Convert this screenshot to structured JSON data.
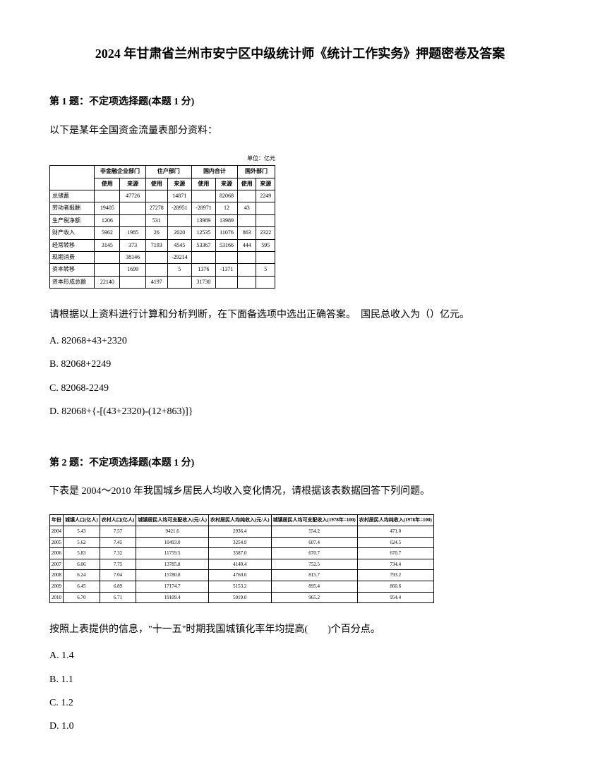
{
  "title": "2024 年甘肃省兰州市安宁区中级统计师《统计工作实务》押题密卷及答案",
  "q1": {
    "header": "第 1 题：不定项选择题(本题 1 分)",
    "text": "以下是某年全国资金流量表部分资料：",
    "unit": "单位：亿元",
    "table": {
      "header_groups": [
        "",
        "非金融企业部门",
        "住户部门",
        "国内合计",
        "国外部门"
      ],
      "sub_headers": [
        "",
        "使用",
        "来源",
        "使用",
        "来源",
        "使用",
        "来源",
        "使用",
        "来源"
      ],
      "rows": [
        [
          "总储蓄",
          "",
          "47726",
          "",
          "14871",
          "",
          "82068",
          "",
          "2249"
        ],
        [
          "劳动者报酬",
          "19405",
          "",
          "27278",
          "-28951",
          "-28971",
          "12",
          "43",
          ""
        ],
        [
          "生产税净额",
          "1206",
          "",
          "531",
          "",
          "13989",
          "13989",
          "",
          ""
        ],
        [
          "财产收入",
          "5962",
          "1985",
          "26",
          "2020",
          "12535",
          "11076",
          "863",
          "2322"
        ],
        [
          "经常转移",
          "3145",
          "373",
          "7193",
          "4545",
          "53367",
          "53166",
          "444",
          "595"
        ],
        [
          "现期消费",
          "",
          "38146",
          "",
          "-29214",
          "",
          "",
          "",
          ""
        ],
        [
          "资本转移",
          "",
          "1699",
          "",
          "5",
          "1376",
          "-1371",
          "",
          "5"
        ],
        [
          "资本形成总额",
          "22140",
          "",
          "4197",
          "",
          "31730",
          "",
          "",
          ""
        ]
      ]
    },
    "answer_prompt": "请根据以上资料进行计算和分析判断，在下面备选项中选出正确答案。　国民总收入为（）亿元。",
    "options": {
      "a": "A. 82068+43+2320",
      "b": "B. 82068+2249",
      "c": "C. 82068-2249",
      "d": "D. 82068+{-[(43+2320)-(12+863)]}"
    }
  },
  "q2": {
    "header": "第 2 题：不定项选择题(本题 1 分)",
    "text": "下表是 2004～2010 年我国城乡居民人均收入变化情况，请根据该表数据回答下列问题。",
    "table": {
      "headers": [
        "年份",
        "城镇人口(亿人)",
        "农村人口(亿人)",
        "城镇居民人均可支配收入(元/人)",
        "农村居民人均纯收入(元/人)",
        "城镇居民人均可支配收入(1978年=100)",
        "农村居民人均纯收入(1978年=100)"
      ],
      "rows": [
        [
          "2004",
          "5.43",
          "7.57",
          "9421.6",
          "2936.4",
          "554.2",
          "471.0"
        ],
        [
          "2005",
          "5.62",
          "7.45",
          "10493.0",
          "3254.9",
          "607.4",
          "624.5"
        ],
        [
          "2006",
          "5.83",
          "7.32",
          "11759.5",
          "3587.0",
          "670.7",
          "670.7"
        ],
        [
          "2007",
          "6.06",
          "7.75",
          "13785.8",
          "4140.4",
          "752.5",
          "734.4"
        ],
        [
          "2008",
          "6.24",
          "7.04",
          "15780.8",
          "4760.6",
          "815.7",
          "793.2"
        ],
        [
          "2009",
          "6.45",
          "6.89",
          "17174.7",
          "5153.2",
          "895.4",
          "860.6"
        ],
        [
          "2010",
          "6.70",
          "6.71",
          "19109.4",
          "5919.0",
          "965.2",
          "954.4"
        ]
      ]
    },
    "answer_prompt": "按照上表提供的信息，\"十一五\"时期我国城镇化率年均提高(　　)个百分点。",
    "options": {
      "a": "A. 1.4",
      "b": "B. 1.1",
      "c": "C. 1.2",
      "d": "D. 1.0"
    }
  }
}
